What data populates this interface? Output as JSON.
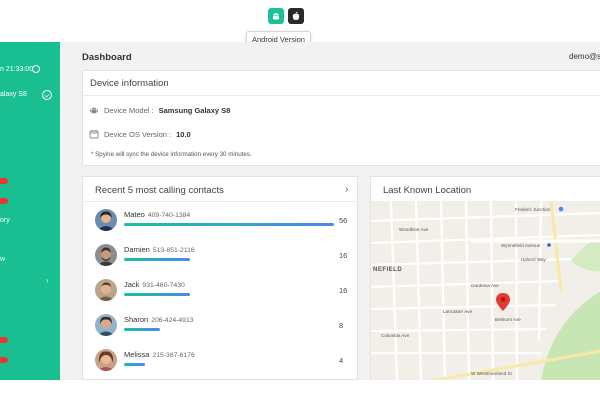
{
  "os_toggle": {
    "tooltip": "Android Version",
    "active": "android",
    "android_icon": "android-icon",
    "ios_icon": "apple-icon"
  },
  "sidebar": {
    "time_text": "n 21:33:00",
    "device_text": "alaxy S8",
    "items": [
      {
        "label": "ory"
      },
      {
        "label": "w"
      }
    ]
  },
  "header": {
    "title": "Dashboard",
    "user": "demo@s"
  },
  "device_info": {
    "title": "Device information",
    "model_label": "Device Model :",
    "model_value": "Samsung Galaxy S8",
    "os_label": "Device OS Version :",
    "os_value": "10.0",
    "note": "* Spyine will sync the device information every 30 minutes."
  },
  "contacts": {
    "title": "Recent 5 most calling contacts",
    "max_count": 56,
    "items": [
      {
        "name": "Mateo",
        "phone": "409-740-1384",
        "count": 56
      },
      {
        "name": "Damien",
        "phone": "513-851-2116",
        "count": 16
      },
      {
        "name": "Jack",
        "phone": "931-460-7430",
        "count": 16
      },
      {
        "name": "Sharon",
        "phone": "206-424-4913",
        "count": 8
      },
      {
        "name": "Melissa",
        "phone": "215-387-6176",
        "count": 4
      }
    ]
  },
  "location": {
    "title": "Last Known Location",
    "map_labels": {
      "poi1": "Frederic Junction",
      "poi2": "Wynnefield Avenue",
      "area": "NEFIELD",
      "street1": "Woodbine Ave",
      "street2": "Lancaster Ave",
      "street3": "Columbia Ave",
      "street4": "N 52nd St",
      "street5": "N 54th St",
      "street6": "W Westmoreland St",
      "street7": "Upland Way",
      "street8": "Gardenia Ave",
      "street9": "W Wellington Ave",
      "street10": "Parkside Ave",
      "street11": "N 47th St",
      "street12": "Belmont Ave"
    }
  },
  "colors": {
    "brand": "#19bf91",
    "badge": "#e53935",
    "pin": "#e53935",
    "bar_start": "#17c39a",
    "bar_end": "#4c86f0"
  }
}
